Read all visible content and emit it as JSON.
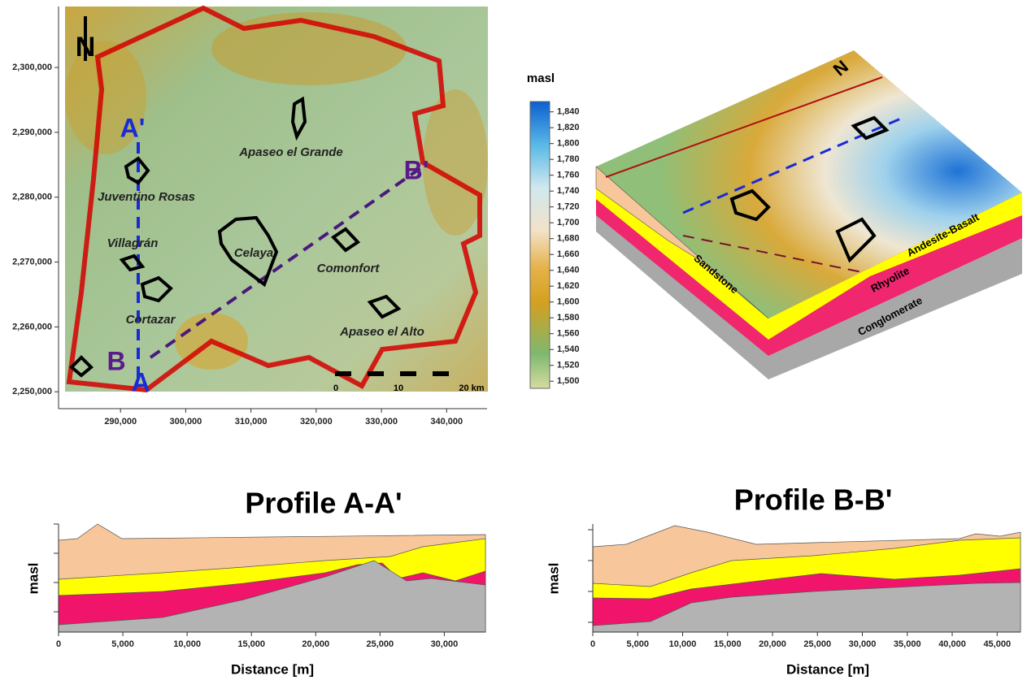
{
  "map": {
    "north": "N",
    "xlim": [
      280500,
      346200
    ],
    "ylim": [
      2247400,
      2309400
    ],
    "xticks": [
      {
        "value": 290000,
        "label": "290,000"
      },
      {
        "value": 300000,
        "label": "300,000"
      },
      {
        "value": 310000,
        "label": "310,000"
      },
      {
        "value": 320000,
        "label": "320,000"
      },
      {
        "value": 330000,
        "label": "330,000"
      },
      {
        "value": 340000,
        "label": "340,000"
      }
    ],
    "yticks": [
      {
        "value": 2250000,
        "label": "2,250,000"
      },
      {
        "value": 2260000,
        "label": "2,260,000"
      },
      {
        "value": 2270000,
        "label": "2,270,000"
      },
      {
        "value": 2280000,
        "label": "2,280,000"
      },
      {
        "value": 2290000,
        "label": "2,290,000"
      },
      {
        "value": 2300000,
        "label": "2,300,000"
      }
    ],
    "places": [
      "Apaseo el Grande",
      "Juventino Rosas",
      "Villagrán",
      "Celaya",
      "Comonfort",
      "Cortazar",
      "Apaseo el Alto"
    ],
    "profile_points": [
      "A'",
      "A",
      "B",
      "B'"
    ],
    "scale": [
      "0",
      "10",
      "20 km"
    ]
  },
  "block": {
    "colorbar_title": "masl",
    "colorbar_lim": [
      1491,
      1853
    ],
    "colorbar_ticks": [
      {
        "value": 1500,
        "label": "1,500"
      },
      {
        "value": 1520,
        "label": "1,520"
      },
      {
        "value": 1540,
        "label": "1,540"
      },
      {
        "value": 1560,
        "label": "1,560"
      },
      {
        "value": 1580,
        "label": "1,580"
      },
      {
        "value": 1600,
        "label": "1,600"
      },
      {
        "value": 1620,
        "label": "1,620"
      },
      {
        "value": 1640,
        "label": "1,640"
      },
      {
        "value": 1660,
        "label": "1,660"
      },
      {
        "value": 1680,
        "label": "1,680"
      },
      {
        "value": 1700,
        "label": "1,700"
      },
      {
        "value": 1720,
        "label": "1,720"
      },
      {
        "value": 1740,
        "label": "1,740"
      },
      {
        "value": 1760,
        "label": "1,760"
      },
      {
        "value": 1780,
        "label": "1,780"
      },
      {
        "value": 1800,
        "label": "1,800"
      },
      {
        "value": 1820,
        "label": "1,820"
      },
      {
        "value": 1840,
        "label": "1,840"
      }
    ],
    "north": "N",
    "layers": [
      "Sandstone",
      "Andesite-Basalt",
      "Rhyolite",
      "Conglomerate"
    ]
  },
  "profiles": [
    {
      "title": "Profile A-A'",
      "ylabel": "masl",
      "xlabel": "Distance [m]",
      "xlim": [
        0,
        33200
      ],
      "xticks": [
        0,
        {
          "value": 5000,
          "label": "5,000"
        },
        {
          "value": 10000,
          "label": "10,000"
        },
        {
          "value": 15000,
          "label": "15,000"
        },
        {
          "value": 20000,
          "label": "20,000"
        },
        {
          "value": 25000,
          "label": "25,000"
        },
        {
          "value": 30000,
          "label": "30,000"
        }
      ]
    },
    {
      "title": "Profile B-B'",
      "ylabel": "masl",
      "xlabel": "Distance [m]",
      "xlim": [
        0,
        47600
      ],
      "xticks": [
        0,
        {
          "value": 5000,
          "label": "5,000"
        },
        {
          "value": 10000,
          "label": "10,000"
        },
        {
          "value": 15000,
          "label": "15,000"
        },
        {
          "value": 20000,
          "label": "20,000"
        },
        {
          "value": 25000,
          "label": "25,000"
        },
        {
          "value": 30000,
          "label": "30,000"
        },
        {
          "value": 35000,
          "label": "35,000"
        },
        {
          "value": 40000,
          "label": "40,000"
        },
        {
          "value": 45000,
          "label": "45,000"
        }
      ]
    }
  ]
}
